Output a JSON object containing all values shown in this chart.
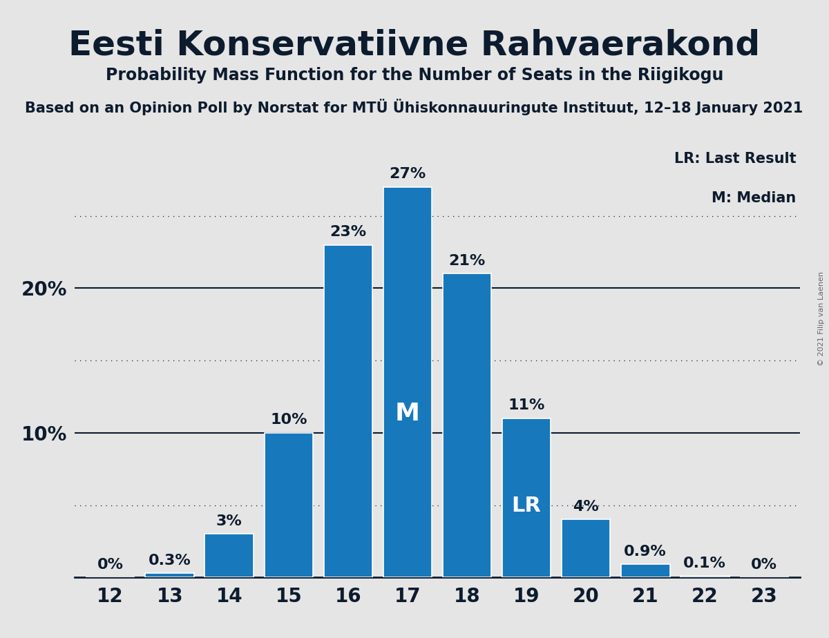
{
  "title": "Eesti Konservatiivne Rahvaerakond",
  "subtitle": "Probability Mass Function for the Number of Seats in the Riigikogu",
  "source_line": "Based on an Opinion Poll by Norstat for MTÜ Ühiskonnauuringute Instituut, 12–18 January 2021",
  "copyright": "© 2021 Filip van Laenen",
  "seats": [
    12,
    13,
    14,
    15,
    16,
    17,
    18,
    19,
    20,
    21,
    22,
    23
  ],
  "probabilities": [
    0.0,
    0.3,
    3.0,
    10.0,
    23.0,
    27.0,
    21.0,
    11.0,
    4.0,
    0.9,
    0.1,
    0.0
  ],
  "bar_color": "#1878bc",
  "bar_edge_color": "white",
  "background_color": "#e5e5e5",
  "title_color": "#0d1b2e",
  "median_seat": 17,
  "lr_seat": 19,
  "solid_yticks": [
    10,
    20
  ],
  "dotted_yticks": [
    5,
    15,
    25
  ],
  "ylim": [
    0,
    30
  ],
  "lr_label": "LR: Last Result",
  "m_label": "M: Median",
  "bar_label_fontsize": 16,
  "bar_label_inside_fontsize": 26,
  "ytick_fontsize": 20,
  "xtick_fontsize": 20,
  "title_fontsize": 36,
  "subtitle_fontsize": 17,
  "source_fontsize": 15
}
